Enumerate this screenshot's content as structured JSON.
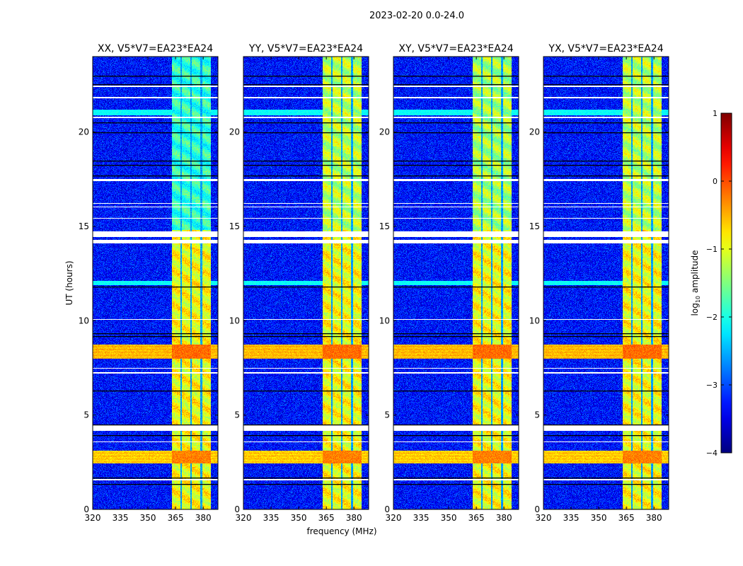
{
  "chart_data": {
    "type": "heatmap",
    "title": "2023-02-20 0.0-24.0",
    "xlabel": "frequency (MHz)",
    "ylabel": "UT (hours)",
    "xlim": [
      320,
      388
    ],
    "ylim": [
      0,
      24
    ],
    "xticks": [
      "320",
      "335",
      "350",
      "365",
      "380"
    ],
    "xtick_values": [
      320,
      335,
      350,
      365,
      380
    ],
    "yticks": [
      "0",
      "5",
      "10",
      "15",
      "20"
    ],
    "ytick_values": [
      0,
      5,
      10,
      15,
      20
    ],
    "panels": [
      {
        "title": "XX, V5*V7=EA23*EA24",
        "inband_level_late": -1.9
      },
      {
        "title": "YY, V5*V7=EA23*EA24",
        "inband_level_late": -1.2
      },
      {
        "title": "XY, V5*V7=EA23*EA24",
        "inband_level_late": -1.3
      },
      {
        "title": "YX, V5*V7=EA23*EA24",
        "inband_level_late": -1.2
      }
    ],
    "colorbar": {
      "label_main": "log",
      "label_sub": "10",
      "label_rest": " amplitude",
      "colormap": "jet",
      "range": [
        -4,
        1
      ],
      "ticks": [
        "1",
        "0",
        "−1",
        "−2",
        "−3",
        "−4"
      ],
      "tick_values": [
        1,
        0,
        -1,
        -2,
        -3,
        -4
      ]
    },
    "features": {
      "background_level": -3.3,
      "band_mhz": [
        363,
        384
      ],
      "band_dividers_mhz": [
        368,
        373.5,
        379
      ],
      "inband_level_early": -0.9,
      "rfi_bands_hours": [
        [
          2.45,
          3.1,
          -0.2
        ],
        [
          8.0,
          8.75,
          -0.1
        ]
      ],
      "cyan_bands_hours": [
        [
          20.9,
          21.2
        ],
        [
          11.9,
          12.1
        ]
      ],
      "flagged_hours": [
        [
          4.15,
          4.45
        ],
        [
          14.1,
          14.3
        ],
        [
          14.45,
          14.75
        ],
        [
          1.55,
          1.6
        ],
        [
          3.55,
          3.6
        ],
        [
          7.2,
          7.26
        ],
        [
          7.45,
          7.5
        ],
        [
          10.05,
          10.1
        ],
        [
          15.4,
          15.45
        ],
        [
          16.0,
          16.06
        ],
        [
          16.2,
          16.25
        ],
        [
          17.4,
          17.5
        ],
        [
          20.75,
          20.82
        ],
        [
          21.8,
          21.85
        ],
        [
          22.4,
          22.48
        ]
      ],
      "black_lines_hours": [
        1.35,
        1.7,
        3.95,
        4.5,
        6.3,
        9.2,
        9.35,
        11.8,
        17.7,
        18.25,
        18.5,
        20.0,
        20.5,
        22.55,
        23.0
      ]
    }
  }
}
